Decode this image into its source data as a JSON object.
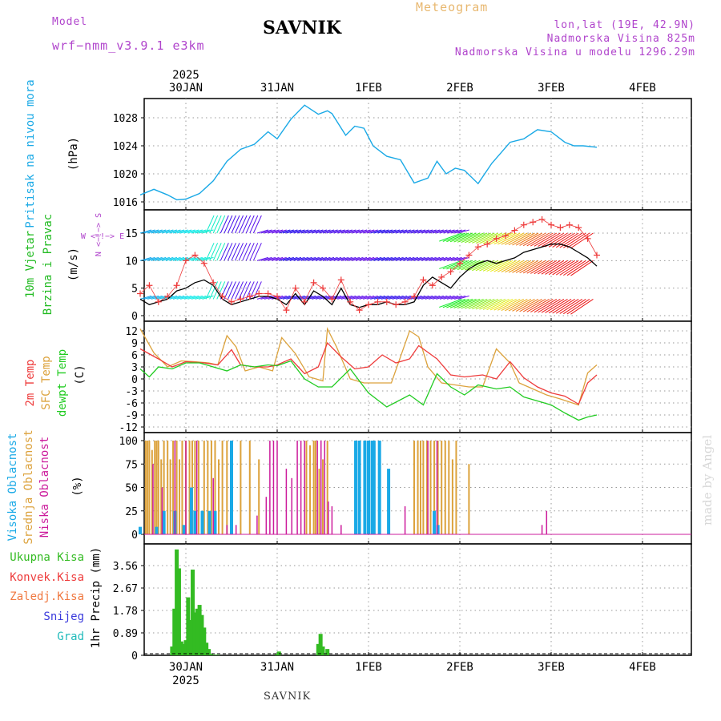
{
  "header": {
    "model_label": "Model",
    "model_name": "wrf−nmm_v3.9.1  e3km",
    "title": "SAVNIK",
    "meteogram": "Meteogram",
    "location": "lon,lat (19E, 42.9N)",
    "elevation": "Nadmorska Visina 825m",
    "model_elevation": "Nadmorska Visina u modelu 1296.29m"
  },
  "footer": {
    "station": "SAVNIK",
    "watermark": "made by Angel"
  },
  "colors": {
    "pressure": "#1aa9e6",
    "wind_label": "#22bb22",
    "temp2m": "#ee3b3b",
    "sfc": "#dca23c",
    "dewpt": "#22cc22",
    "high_cloud": "#1aa9e6",
    "mid_cloud": "#dca23c",
    "low_cloud": "#cc1c9c",
    "precip": "#33bb22",
    "conv": "#ee3b3b",
    "freezing": "#f07840",
    "snow": "#3a3adc",
    "grad": "#22bbbb",
    "compass": "#b044cc"
  },
  "chart_data": [
    {
      "type": "line",
      "panel": "pressure",
      "ylabel_lines": [
        "Pritisak na nivou mora",
        "(hPa)"
      ],
      "ylim": [
        1016,
        1031.5
      ],
      "yticks": [
        1016,
        1020,
        1024,
        1028
      ],
      "series": [
        {
          "name": "Pritisak na nivou mora",
          "x": [
            -0.5,
            -0.35,
            -0.2,
            -0.1,
            0.0,
            0.15,
            0.3,
            0.45,
            0.6,
            0.75,
            0.9,
            1.0,
            1.15,
            1.3,
            1.45,
            1.55,
            1.6,
            1.75,
            1.85,
            1.95,
            2.05,
            2.2,
            2.35,
            2.5,
            2.65,
            2.75,
            2.85,
            2.95,
            3.05,
            3.2,
            3.35,
            3.45,
            3.55,
            3.7,
            3.85,
            4.0,
            4.15,
            4.25,
            4.35,
            4.5
          ],
          "y": [
            1017.0,
            1017.8,
            1017.0,
            1016.3,
            1016.4,
            1017.2,
            1019.0,
            1021.8,
            1023.5,
            1024.2,
            1026.0,
            1025.0,
            1027.8,
            1029.8,
            1028.5,
            1029.0,
            1028.6,
            1025.5,
            1026.8,
            1026.5,
            1024.0,
            1022.5,
            1022.0,
            1018.7,
            1019.4,
            1021.8,
            1020.0,
            1020.8,
            1020.5,
            1018.6,
            1021.5,
            1023.0,
            1024.5,
            1025.0,
            1026.3,
            1026.0,
            1024.5,
            1024.0,
            1024.0,
            1023.8
          ]
        }
      ]
    },
    {
      "type": "line",
      "panel": "wind",
      "ylabel_lines": [
        "10m Vjetar",
        "Brzina i Pravac",
        "(m/s)"
      ],
      "compass": [
        "N",
        "<−!−>",
        "S",
        "W",
        "E"
      ],
      "ylim": [
        0,
        18
      ],
      "yticks": [
        0,
        5,
        10,
        15
      ],
      "series": [
        {
          "name": "Brzina",
          "x": [
            -0.5,
            -0.4,
            -0.3,
            -0.2,
            -0.1,
            0.0,
            0.1,
            0.2,
            0.3,
            0.4,
            0.5,
            0.6,
            0.7,
            0.8,
            0.9,
            1.0,
            1.1,
            1.2,
            1.3,
            1.4,
            1.5,
            1.6,
            1.7,
            1.8,
            1.9,
            2.0,
            2.1,
            2.2,
            2.3,
            2.4,
            2.5,
            2.6,
            2.7,
            2.8,
            2.9,
            3.0,
            3.1,
            3.2,
            3.3,
            3.4,
            3.5,
            3.6,
            3.7,
            3.8,
            3.9,
            4.0,
            4.1,
            4.2,
            4.3,
            4.4,
            4.5
          ],
          "y": [
            3.0,
            2.0,
            2.5,
            3.0,
            4.5,
            5.0,
            6.0,
            6.5,
            5.5,
            3.0,
            2.0,
            2.5,
            3.0,
            3.5,
            3.5,
            3.0,
            2.0,
            4.0,
            2.0,
            4.5,
            3.5,
            2.0,
            5.0,
            2.0,
            1.5,
            2.0,
            2.0,
            2.5,
            2.0,
            2.0,
            2.5,
            5.5,
            7.0,
            6.0,
            5.0,
            7.0,
            8.5,
            9.5,
            10.0,
            9.5,
            10.0,
            10.5,
            11.5,
            12.0,
            12.5,
            13.0,
            13.0,
            12.5,
            11.5,
            10.5,
            9.0
          ]
        },
        {
          "name": "Udari",
          "x": [
            -0.5,
            -0.4,
            -0.3,
            -0.2,
            -0.1,
            0.0,
            0.1,
            0.2,
            0.3,
            0.4,
            0.5,
            0.6,
            0.7,
            0.8,
            0.9,
            1.0,
            1.1,
            1.2,
            1.3,
            1.4,
            1.5,
            1.6,
            1.7,
            1.8,
            1.9,
            2.0,
            2.1,
            2.2,
            2.3,
            2.4,
            2.5,
            2.6,
            2.7,
            2.8,
            2.9,
            3.0,
            3.1,
            3.2,
            3.3,
            3.4,
            3.5,
            3.6,
            3.7,
            3.8,
            3.9,
            4.0,
            4.1,
            4.2,
            4.3,
            4.4,
            4.5
          ],
          "y": [
            4.0,
            5.5,
            2.5,
            3.5,
            5.5,
            10.0,
            11.0,
            9.5,
            6.0,
            3.5,
            2.5,
            3.0,
            3.5,
            4.0,
            4.0,
            3.5,
            1.0,
            5.0,
            2.5,
            6.0,
            5.0,
            3.0,
            6.5,
            2.5,
            1.0,
            2.0,
            2.5,
            2.5,
            2.0,
            2.5,
            3.5,
            6.5,
            5.5,
            7.0,
            8.0,
            9.5,
            11.0,
            12.5,
            13.0,
            14.0,
            14.5,
            15.5,
            16.5,
            17.0,
            17.5,
            16.5,
            16.0,
            16.5,
            16.0,
            14.0,
            11.0
          ]
        }
      ]
    },
    {
      "type": "line",
      "panel": "temperature",
      "ylabel_lines": [
        "2m Temp",
        "SFC Temp",
        "dewpt Temp",
        "(C)"
      ],
      "ylim": [
        -12,
        14
      ],
      "yticks": [
        -12,
        -9,
        -6,
        -3,
        0,
        3,
        6,
        9,
        12
      ],
      "series": [
        {
          "name": "2m Temp",
          "x": [
            -0.5,
            -0.3,
            -0.15,
            0.0,
            0.2,
            0.35,
            0.5,
            0.6,
            0.75,
            0.9,
            1.0,
            1.15,
            1.3,
            1.45,
            1.55,
            1.7,
            1.85,
            2.0,
            2.15,
            2.3,
            2.45,
            2.55,
            2.75,
            2.9,
            3.05,
            3.25,
            3.4,
            3.55,
            3.7,
            3.85,
            4.0,
            4.15,
            4.3,
            4.4,
            4.5
          ],
          "y": [
            7.5,
            5.0,
            3.0,
            4.3,
            4.0,
            3.5,
            7.3,
            3.5,
            3.0,
            3.0,
            3.5,
            5.0,
            1.3,
            3.0,
            9.0,
            5.5,
            2.5,
            3.0,
            6.0,
            4.0,
            5.0,
            8.3,
            5.0,
            1.0,
            0.5,
            1.0,
            0.0,
            4.3,
            0.3,
            -2.0,
            -3.5,
            -4.3,
            -6.3,
            -1.0,
            1.0
          ]
        },
        {
          "name": "SFC Temp",
          "x": [
            -0.5,
            -0.35,
            -0.2,
            -0.05,
            0.1,
            0.25,
            0.35,
            0.45,
            0.55,
            0.65,
            0.8,
            0.95,
            1.05,
            1.2,
            1.35,
            1.5,
            1.55,
            1.65,
            1.8,
            1.95,
            2.1,
            2.25,
            2.45,
            2.55,
            2.65,
            2.8,
            2.95,
            3.1,
            3.25,
            3.4,
            3.55,
            3.65,
            3.8,
            3.95,
            4.1,
            4.3,
            4.4,
            4.5
          ],
          "y": [
            12.5,
            6.5,
            3.0,
            4.5,
            4.3,
            4.0,
            3.5,
            10.8,
            8.0,
            2.0,
            3.0,
            2.0,
            10.3,
            6.3,
            0.5,
            -0.5,
            12.5,
            8.0,
            0.0,
            -1.0,
            -1.0,
            -1.0,
            12.0,
            10.5,
            3.0,
            -1.0,
            -1.5,
            -2.0,
            -2.0,
            7.5,
            4.0,
            -1.0,
            -2.5,
            -4.0,
            -5.0,
            -6.5,
            1.5,
            3.5
          ]
        },
        {
          "name": "dewpt Temp",
          "x": [
            -0.5,
            -0.4,
            -0.3,
            -0.15,
            0.0,
            0.15,
            0.3,
            0.45,
            0.6,
            0.75,
            0.9,
            1.0,
            1.15,
            1.3,
            1.45,
            1.6,
            1.8,
            2.0,
            2.2,
            2.45,
            2.6,
            2.75,
            2.9,
            3.05,
            3.2,
            3.4,
            3.55,
            3.7,
            3.85,
            4.0,
            4.15,
            4.3,
            4.4,
            4.5
          ],
          "y": [
            2.5,
            0.5,
            3.0,
            2.5,
            4.0,
            4.0,
            3.0,
            2.0,
            3.5,
            3.0,
            3.5,
            3.3,
            4.5,
            0.0,
            -2.0,
            -2.0,
            2.5,
            -3.5,
            -7.0,
            -4.0,
            -6.5,
            1.3,
            -2.0,
            -4.0,
            -1.5,
            -2.5,
            -2.0,
            -4.5,
            -5.5,
            -6.5,
            -8.5,
            -10.3,
            -9.5,
            -9.0
          ]
        }
      ]
    },
    {
      "type": "bar",
      "panel": "clouds",
      "ylabel_lines": [
        "Visoka Oblacnost",
        "Srednja Oblacnost",
        "Niska Oblacnost",
        "(%)"
      ],
      "ylim": [
        0,
        100
      ],
      "yticks": [
        0,
        25,
        50,
        75,
        100
      ],
      "series": [
        {
          "name": "Visoka Oblacnost",
          "x": [
            -0.5,
            -0.32,
            -0.24,
            -0.12,
            -0.02,
            0.06,
            0.1,
            0.18,
            0.26,
            0.32,
            0.5,
            1.86,
            1.9,
            1.96,
            2.0,
            2.04,
            2.06,
            2.12,
            2.22,
            2.72,
            2.76
          ],
          "y": [
            8,
            8,
            25,
            25,
            10,
            50,
            25,
            25,
            25,
            25,
            100,
            100,
            100,
            100,
            100,
            100,
            100,
            100,
            70,
            25,
            10
          ]
        },
        {
          "name": "Srednja Oblacnost",
          "x": [
            -0.44,
            -0.42,
            -0.4,
            -0.37,
            -0.34,
            -0.32,
            -0.3,
            -0.27,
            -0.24,
            -0.2,
            -0.17,
            -0.14,
            -0.1,
            -0.07,
            -0.04,
            0.0,
            0.04,
            0.07,
            0.1,
            0.14,
            0.2,
            0.24,
            0.28,
            0.32,
            0.36,
            0.4,
            0.45,
            0.6,
            0.7,
            0.8,
            1.32,
            1.36,
            1.4,
            1.42,
            1.46,
            1.5,
            1.55,
            2.5,
            2.54,
            2.57,
            2.6,
            2.64,
            2.68,
            2.72,
            2.76,
            2.8,
            2.84,
            2.88,
            2.92,
            2.96,
            3.1
          ],
          "y": [
            100,
            100,
            100,
            90,
            100,
            100,
            100,
            80,
            100,
            100,
            80,
            100,
            100,
            80,
            100,
            100,
            100,
            100,
            100,
            100,
            100,
            100,
            100,
            100,
            80,
            100,
            100,
            100,
            100,
            80,
            100,
            95,
            100,
            100,
            70,
            80,
            100,
            100,
            100,
            100,
            100,
            100,
            100,
            100,
            100,
            100,
            100,
            100,
            80,
            100,
            75
          ]
        },
        {
          "name": "Niska Oblacnost",
          "x": [
            -0.36,
            -0.26,
            -0.12,
            0.0,
            0.12,
            0.3,
            0.45,
            0.55,
            0.78,
            0.88,
            0.92,
            0.96,
            1.0,
            1.1,
            1.16,
            1.22,
            1.26,
            1.3,
            1.44,
            1.48,
            1.52,
            1.56,
            1.6,
            1.7,
            2.4,
            2.65,
            2.75,
            3.9,
            3.95
          ],
          "y": [
            75,
            50,
            100,
            100,
            100,
            60,
            10,
            10,
            20,
            40,
            100,
            100,
            100,
            70,
            60,
            100,
            100,
            100,
            100,
            100,
            100,
            35,
            30,
            10,
            30,
            100,
            100,
            10,
            25
          ]
        }
      ]
    },
    {
      "type": "bar",
      "panel": "precipitation",
      "ylabel_lines": [
        "1hr Precip (mm)"
      ],
      "legend": [
        "Ukupna Kisa",
        "Konvek.Kisa",
        "Zaledj.Kisa",
        "Snijeg",
        "Grad"
      ],
      "ylim": [
        0,
        4.45
      ],
      "yticks": [
        0,
        0.89,
        1.78,
        2.67,
        3.56
      ],
      "series": [
        {
          "name": "Ukupna Kisa",
          "x": [
            -0.15,
            -0.125,
            -0.1,
            -0.075,
            -0.05,
            -0.025,
            0.0,
            0.025,
            0.05,
            0.075,
            0.1,
            0.125,
            0.15,
            0.175,
            0.2,
            0.225,
            0.25,
            0.275,
            0.3,
            0.325,
            0.35,
            1.0,
            1.02,
            1.45,
            1.475,
            1.5,
            1.55
          ],
          "y": [
            0.35,
            1.85,
            4.2,
            3.45,
            0.55,
            0.45,
            0.6,
            2.3,
            1.4,
            3.4,
            1.7,
            1.85,
            2.0,
            1.6,
            1.1,
            0.5,
            0.25,
            0.05,
            0.02,
            0.02,
            0.02,
            0.05,
            0.15,
            0.45,
            0.85,
            0.35,
            0.25
          ]
        }
      ]
    }
  ],
  "time_axis": {
    "ticks": [
      {
        "x": 0,
        "label": "30JAN"
      },
      {
        "x": 1,
        "label": "31JAN"
      },
      {
        "x": 2,
        "label": "1FEB"
      },
      {
        "x": 3,
        "label": "2FEB"
      },
      {
        "x": 4,
        "label": "3FEB"
      },
      {
        "x": 5,
        "label": "4FEB"
      }
    ],
    "year": "2025",
    "xlim": [
      -0.5,
      5.5
    ]
  }
}
